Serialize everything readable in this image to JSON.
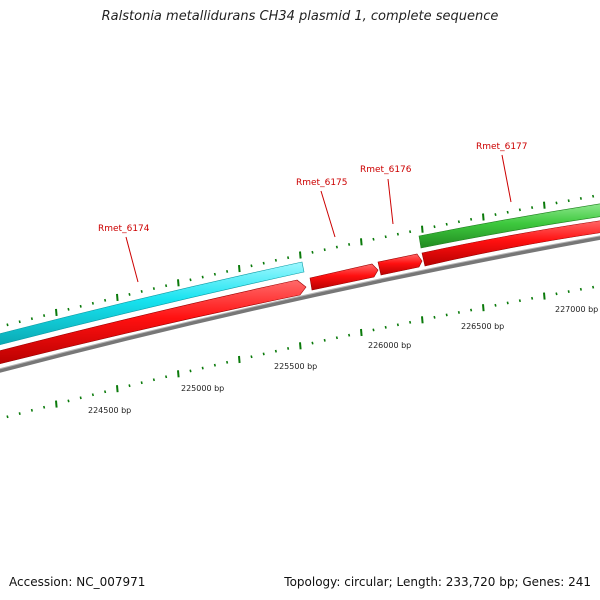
{
  "title": "Ralstonia metallidurans CH34 plasmid 1, complete sequence",
  "footer": {
    "accession": "Accession: NC_007971",
    "topology": "Topology: circular; Length: 233,720 bp; Genes: 241"
  },
  "colors": {
    "forward_cds": "#ff1010",
    "reverse_cds": "#17e3f0",
    "other_feature": "#3ec93e",
    "backbone": "#777777",
    "ticks": "#0a7a0a",
    "gene_label": "#cc0000"
  },
  "genes": [
    {
      "label": "Rmet_6174"
    },
    {
      "label": "Rmet_6175"
    },
    {
      "label": "Rmet_6176"
    },
    {
      "label": "Rmet_6177"
    }
  ],
  "bp_ticks": [
    {
      "label": "224500 bp"
    },
    {
      "label": "225000 bp"
    },
    {
      "label": "225500 bp"
    },
    {
      "label": "226000 bp"
    },
    {
      "label": "226500 bp"
    },
    {
      "label": "227000 bp"
    }
  ]
}
